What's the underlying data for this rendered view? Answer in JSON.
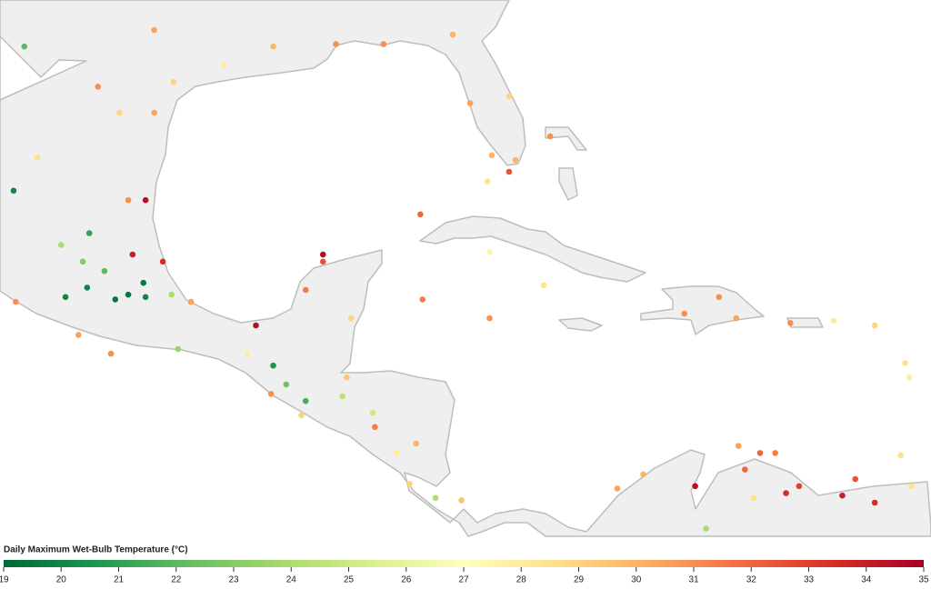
{
  "chart_data": {
    "type": "map",
    "legend_title": "Daily Maximum Wet-Bulb Temperature (°C)",
    "colorbar": {
      "lim": [
        19,
        35
      ],
      "ticks": [
        19,
        20,
        21,
        22,
        23,
        24,
        25,
        26,
        27,
        28,
        29,
        30,
        31,
        32,
        33,
        34,
        35
      ],
      "colors": [
        "#006837",
        "#1a9850",
        "#66bd63",
        "#a6d96a",
        "#d9ef8b",
        "#ffffbf",
        "#fee08b",
        "#fdae61",
        "#f46d43",
        "#d73027",
        "#a50026"
      ]
    },
    "points": [
      {
        "lon": -97.5,
        "lat": 23.8,
        "value": 34.5
      },
      {
        "lon": -98.1,
        "lat": 21.5,
        "value": 34
      },
      {
        "lon": -96.7,
        "lat": 21.2,
        "value": 33.5
      },
      {
        "lon": -89.3,
        "lat": 21.5,
        "value": 34.5
      },
      {
        "lon": -89.3,
        "lat": 21.2,
        "value": 32.5
      },
      {
        "lon": -92.4,
        "lat": 18.5,
        "value": 34.5
      },
      {
        "lon": -103.6,
        "lat": 24.2,
        "value": 20
      },
      {
        "lon": -100.1,
        "lat": 22.4,
        "value": 21
      },
      {
        "lon": -101.2,
        "lat": 19.7,
        "value": 20
      },
      {
        "lon": -100.2,
        "lat": 20.1,
        "value": 20
      },
      {
        "lon": -98.9,
        "lat": 19.6,
        "value": 19.5
      },
      {
        "lon": -98.3,
        "lat": 19.8,
        "value": 19.5
      },
      {
        "lon": -97.6,
        "lat": 20.3,
        "value": 19.5
      },
      {
        "lon": -97.5,
        "lat": 19.7,
        "value": 20
      },
      {
        "lon": -99.4,
        "lat": 20.8,
        "value": 22
      },
      {
        "lon": -100.4,
        "lat": 21.2,
        "value": 23
      },
      {
        "lon": -101.4,
        "lat": 21.9,
        "value": 24
      },
      {
        "lon": -96.3,
        "lat": 19.8,
        "value": 24
      },
      {
        "lon": -96.0,
        "lat": 17.5,
        "value": 23.5
      },
      {
        "lon": -91.6,
        "lat": 16.8,
        "value": 20.5
      },
      {
        "lon": -91.0,
        "lat": 16.0,
        "value": 22.5
      },
      {
        "lon": -90.1,
        "lat": 15.3,
        "value": 21.5
      },
      {
        "lon": -88.4,
        "lat": 15.5,
        "value": 24.5
      },
      {
        "lon": -87.0,
        "lat": 14.8,
        "value": 25
      },
      {
        "lon": -84.1,
        "lat": 11.2,
        "value": 24
      },
      {
        "lon": -71.6,
        "lat": 9.9,
        "value": 24
      },
      {
        "lon": -72.1,
        "lat": 11.7,
        "value": 34.5
      },
      {
        "lon": -80.7,
        "lat": 25.0,
        "value": 32.5
      },
      {
        "lon": -84.7,
        "lat": 19.6,
        "value": 31.5
      },
      {
        "lon": -85.0,
        "lat": 13.5,
        "value": 30
      },
      {
        "lon": -84.8,
        "lat": 23.2,
        "value": 32
      },
      {
        "lon": -81.6,
        "lat": 21.6,
        "value": 27.5
      },
      {
        "lon": -72.6,
        "lat": 19.0,
        "value": 31
      },
      {
        "lon": -71.0,
        "lat": 19.7,
        "value": 31
      },
      {
        "lon": -70.2,
        "lat": 18.8,
        "value": 30.5
      },
      {
        "lon": -67.7,
        "lat": 18.6,
        "value": 31
      },
      {
        "lon": -65.7,
        "lat": 18.7,
        "value": 28
      },
      {
        "lon": -63.8,
        "lat": 18.5,
        "value": 29
      },
      {
        "lon": -62.4,
        "lat": 16.9,
        "value": 28.5
      },
      {
        "lon": -62.2,
        "lat": 16.3,
        "value": 28
      },
      {
        "lon": -62.6,
        "lat": 13.0,
        "value": 28.5
      },
      {
        "lon": -62.1,
        "lat": 11.7,
        "value": 28.5
      },
      {
        "lon": -64.7,
        "lat": 12.0,
        "value": 32.5
      },
      {
        "lon": -65.3,
        "lat": 11.3,
        "value": 34
      },
      {
        "lon": -63.8,
        "lat": 11.0,
        "value": 33.5
      },
      {
        "lon": -67.3,
        "lat": 11.7,
        "value": 33
      },
      {
        "lon": -67.9,
        "lat": 11.4,
        "value": 33.5
      },
      {
        "lon": -69.1,
        "lat": 13.1,
        "value": 32
      },
      {
        "lon": -68.4,
        "lat": 13.1,
        "value": 31.5
      },
      {
        "lon": -70.1,
        "lat": 13.4,
        "value": 30.5
      },
      {
        "lon": -69.8,
        "lat": 12.4,
        "value": 32
      },
      {
        "lon": -69.4,
        "lat": 11.2,
        "value": 28.5
      },
      {
        "lon": -74.5,
        "lat": 12.2,
        "value": 30
      },
      {
        "lon": -75.7,
        "lat": 11.6,
        "value": 30.5
      },
      {
        "lon": -81.6,
        "lat": 18.8,
        "value": 31
      },
      {
        "lon": -79.1,
        "lat": 20.2,
        "value": 28.5
      },
      {
        "lon": -82.5,
        "lat": 27.9,
        "value": 30.5
      },
      {
        "lon": -81.7,
        "lat": 24.6,
        "value": 28.5
      },
      {
        "lon": -80.4,
        "lat": 25.5,
        "value": 30
      },
      {
        "lon": -78.8,
        "lat": 26.5,
        "value": 31
      },
      {
        "lon": -88.7,
        "lat": 30.4,
        "value": 31
      },
      {
        "lon": -86.5,
        "lat": 30.4,
        "value": 31
      },
      {
        "lon": -91.6,
        "lat": 30.3,
        "value": 30
      },
      {
        "lon": -97.1,
        "lat": 31.0,
        "value": 30.5
      },
      {
        "lon": -99.7,
        "lat": 28.6,
        "value": 31
      },
      {
        "lon": -98.7,
        "lat": 27.5,
        "value": 29
      },
      {
        "lon": -97.1,
        "lat": 27.5,
        "value": 30.5
      },
      {
        "lon": -102.5,
        "lat": 25.6,
        "value": 28.5
      },
      {
        "lon": -103.1,
        "lat": 30.3,
        "value": 22
      },
      {
        "lon": -98.3,
        "lat": 23.8,
        "value": 31
      },
      {
        "lon": -99.1,
        "lat": 17.3,
        "value": 31
      },
      {
        "lon": -100.6,
        "lat": 18.1,
        "value": 30.5
      },
      {
        "lon": -103.5,
        "lat": 19.5,
        "value": 31
      },
      {
        "lon": -95.4,
        "lat": 19.5,
        "value": 30.5
      },
      {
        "lon": -92.8,
        "lat": 17.3,
        "value": 28
      },
      {
        "lon": -90.1,
        "lat": 20.0,
        "value": 31.5
      },
      {
        "lon": -88.0,
        "lat": 18.8,
        "value": 29
      },
      {
        "lon": -88.2,
        "lat": 16.3,
        "value": 29.5
      },
      {
        "lon": -85.9,
        "lat": 13.1,
        "value": 28
      },
      {
        "lon": -86.9,
        "lat": 14.2,
        "value": 31.5
      },
      {
        "lon": -91.7,
        "lat": 15.6,
        "value": 31
      },
      {
        "lon": -90.3,
        "lat": 14.7,
        "value": 29
      },
      {
        "lon": -85.3,
        "lat": 11.8,
        "value": 29
      },
      {
        "lon": -82.9,
        "lat": 11.1,
        "value": 29.5
      },
      {
        "lon": -81.5,
        "lat": 25.7,
        "value": 30
      },
      {
        "lon": -80.7,
        "lat": 28.2,
        "value": 29
      },
      {
        "lon": -96.2,
        "lat": 28.8,
        "value": 29
      },
      {
        "lon": -93.9,
        "lat": 29.5,
        "value": 28
      },
      {
        "lon": -83.3,
        "lat": 30.8,
        "value": 30
      }
    ]
  }
}
